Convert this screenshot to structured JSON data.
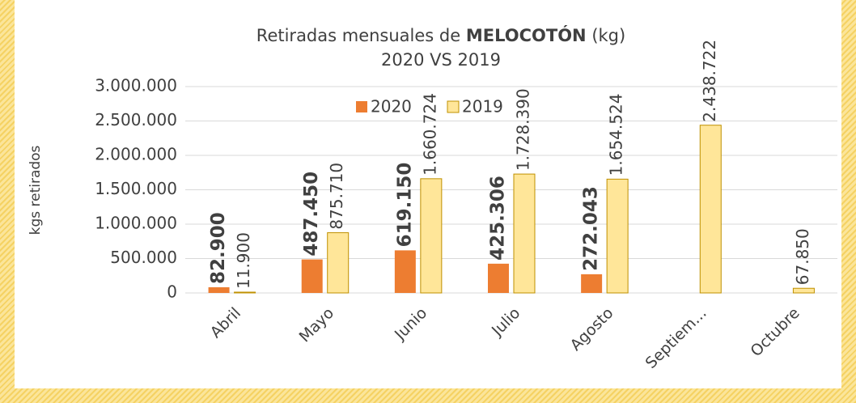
{
  "chart_data": {
    "type": "bar",
    "title": [
      "Retiradas mensuales de",
      "MELOCOTÓN",
      "(kg)"
    ],
    "subtitle": "2020 VS 2019",
    "y_label": "kgs retirados",
    "categories": [
      "Abril",
      "Mayo",
      "Junio",
      "Julio",
      "Agosto",
      "Septiem...",
      "Octubre"
    ],
    "series": [
      {
        "name": "2020",
        "color": "#ed7d31",
        "values": [
          82900,
          487450,
          619150,
          425306,
          272043,
          null,
          null
        ],
        "value_labels": [
          "82.900",
          "487.450",
          "619.150",
          "425.306",
          "272.043",
          null,
          null
        ]
      },
      {
        "name": "2019",
        "color": "#ffe699",
        "values": [
          11900,
          875710,
          1660724,
          1728390,
          1654524,
          2438722,
          67850
        ],
        "value_labels": [
          "11.900",
          "875.710",
          "1.660.724",
          "1.728.390",
          "1.654.524",
          "2.438.722",
          "67.850"
        ]
      }
    ],
    "ylim": [
      0,
      3000000
    ],
    "yticks": [
      0,
      {
        "value": 500000,
        "label": "500.000"
      },
      {
        "value": 1000000,
        "label": "1.000.000"
      },
      {
        "value": 1500000,
        "label": "1.500.000"
      },
      {
        "value": 2000000,
        "label": "2.000.000"
      },
      {
        "value": 2500000,
        "label": "2.500.000"
      },
      {
        "value": 3000000,
        "label": "3.000.000"
      }
    ],
    "grid": true,
    "legend": "top"
  }
}
